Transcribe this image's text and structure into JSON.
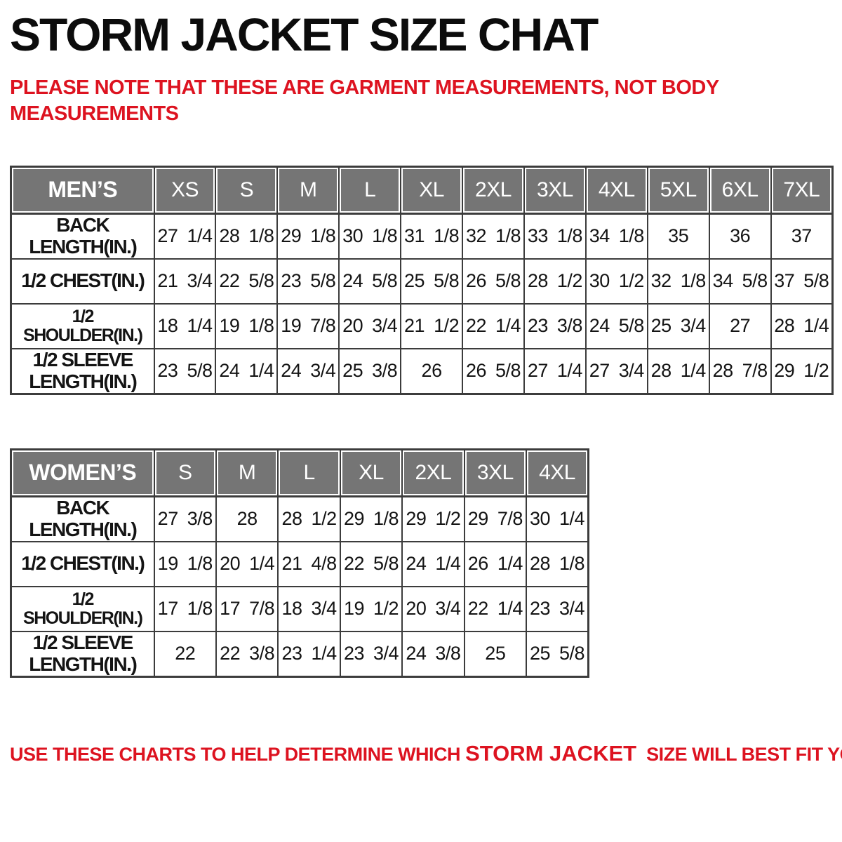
{
  "page": {
    "title": "STORM JACKET SIZE CHAT",
    "note_lines": [
      "PLEASE NOTE THAT THESE ARE GARMENT MEASUREMENTS, NOT BODY",
      "MEASUREMENTS"
    ],
    "footer": {
      "prefix": "USE THESE CHARTS TO HELP DETERMINE WHICH ",
      "highlight": "STORM JACKET",
      "suffix": "  SIZE WILL BEST FIT YOU."
    }
  },
  "colors": {
    "accent_red": "#dd1320",
    "header_gray": "#757575",
    "border_dark": "#3c3c3c",
    "header_text": "#ffffff",
    "body_text": "#141414"
  },
  "tables": {
    "mens": {
      "title": "MEN’S",
      "sizes": [
        "XS",
        "S",
        "M",
        "L",
        "XL",
        "2XL",
        "3XL",
        "4XL",
        "5XL",
        "6XL",
        "7XL"
      ],
      "rows": [
        {
          "name": "back-length",
          "label_lines": [
            "BACK",
            "LENGTH(IN.)"
          ],
          "values": [
            "27 1/4",
            "28 1/8",
            "29 1/8",
            "30 1/8",
            "31 1/8",
            "32 1/8",
            "33 1/8",
            "34 1/8",
            "35",
            "36",
            "37"
          ]
        },
        {
          "name": "half-chest",
          "label_lines": [
            "1/2 CHEST(IN.)"
          ],
          "values": [
            "21 3/4",
            "22 5/8",
            "23 5/8",
            "24 5/8",
            "25 5/8",
            "26 5/8",
            "28 1/2",
            "30 1/2",
            "32 1/8",
            "34 5/8",
            "37 5/8"
          ]
        },
        {
          "name": "half-shoulder",
          "label_lines": [
            "1/2 SHOULDER(IN.)"
          ],
          "values": [
            "18 1/4",
            "19 1/8",
            "19 7/8",
            "20 3/4",
            "21 1/2",
            "22 1/4",
            "23 3/8",
            "24 5/8",
            "25 3/4",
            "27",
            "28 1/4"
          ]
        },
        {
          "name": "half-sleeve-length",
          "label_lines": [
            "1/2 SLEEVE",
            "LENGTH(IN.)"
          ],
          "values": [
            "23 5/8",
            "24 1/4",
            "24 3/4",
            "25 3/8",
            "26",
            "26 5/8",
            "27 1/4",
            "27 3/4",
            "28 1/4",
            "28 7/8",
            "29 1/2"
          ]
        }
      ]
    },
    "womens": {
      "title": "WOMEN’S",
      "sizes": [
        "S",
        "M",
        "L",
        "XL",
        "2XL",
        "3XL",
        "4XL"
      ],
      "rows": [
        {
          "name": "back-length",
          "label_lines": [
            "BACK",
            "LENGTH(IN.)"
          ],
          "values": [
            "27 3/8",
            "28",
            "28 1/2",
            "29 1/8",
            "29 1/2",
            "29 7/8",
            "30 1/4"
          ]
        },
        {
          "name": "half-chest",
          "label_lines": [
            "1/2 CHEST(IN.)"
          ],
          "values": [
            "19 1/8",
            "20 1/4",
            "21 4/8",
            "22 5/8",
            "24 1/4",
            "26 1/4",
            "28 1/8"
          ]
        },
        {
          "name": "half-shoulder",
          "label_lines": [
            "1/2 SHOULDER(IN.)"
          ],
          "values": [
            "17 1/8",
            "17 7/8",
            "18 3/4",
            "19 1/2",
            "20 3/4",
            "22 1/4",
            "23 3/4"
          ]
        },
        {
          "name": "half-sleeve-length",
          "label_lines": [
            "1/2 SLEEVE",
            "LENGTH(IN.)"
          ],
          "values": [
            "22",
            "22 3/8",
            "23 1/4",
            "23 3/4",
            "24 3/8",
            "25",
            "25 5/8"
          ]
        }
      ]
    }
  }
}
